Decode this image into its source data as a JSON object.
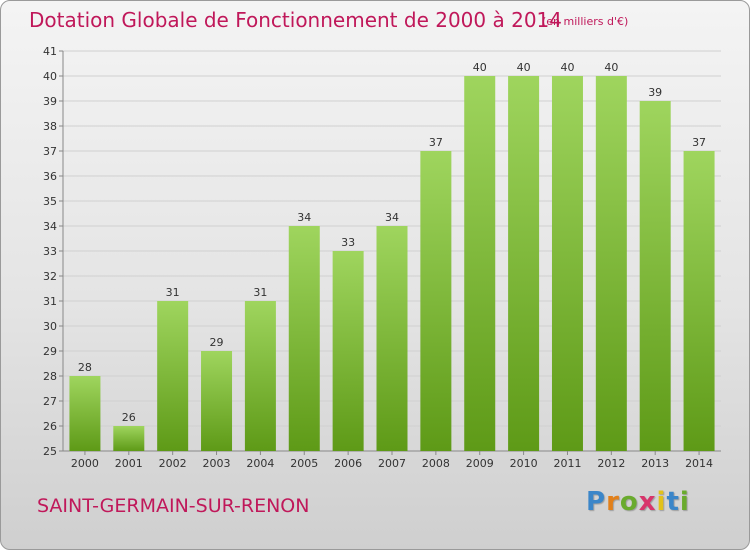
{
  "title": "Dotation Globale de Fonctionnement de 2000 à 2014",
  "subtitle": "(en milliers d'€)",
  "commune": "SAINT-GERMAIN-SUR-RENON",
  "logo": {
    "letters": [
      {
        "char": "P",
        "color": "#3b86c9"
      },
      {
        "char": "r",
        "color": "#e2801a"
      },
      {
        "char": "o",
        "color": "#6aab2e"
      },
      {
        "char": "x",
        "color": "#d8356b"
      },
      {
        "char": "i",
        "color": "#e2c21a"
      },
      {
        "char": "t",
        "color": "#3b86c9"
      },
      {
        "char": "i",
        "color": "#6aab2e"
      }
    ]
  },
  "colors": {
    "title": "#c0185a",
    "bar_top": "#9fd55e",
    "bar_bottom": "#5e9a17",
    "grid": "#d0d0d0",
    "axis": "#888888"
  },
  "chart_data": {
    "type": "bar",
    "title": "Dotation Globale de Fonctionnement de 2000 à 2014",
    "subtitle": "(en milliers d'€)",
    "categories": [
      "2000",
      "2001",
      "2002",
      "2003",
      "2004",
      "2005",
      "2006",
      "2007",
      "2008",
      "2009",
      "2010",
      "2011",
      "2012",
      "2013",
      "2014"
    ],
    "values": [
      28,
      26,
      31,
      29,
      31,
      34,
      33,
      34,
      37,
      40,
      40,
      40,
      40,
      39,
      37
    ],
    "ylim": [
      25,
      41
    ],
    "yticks": [
      25,
      26,
      27,
      28,
      29,
      30,
      31,
      32,
      33,
      34,
      35,
      36,
      37,
      38,
      39,
      40,
      41
    ],
    "xlabel": "",
    "ylabel": "",
    "grid": true,
    "data_labels": true
  }
}
